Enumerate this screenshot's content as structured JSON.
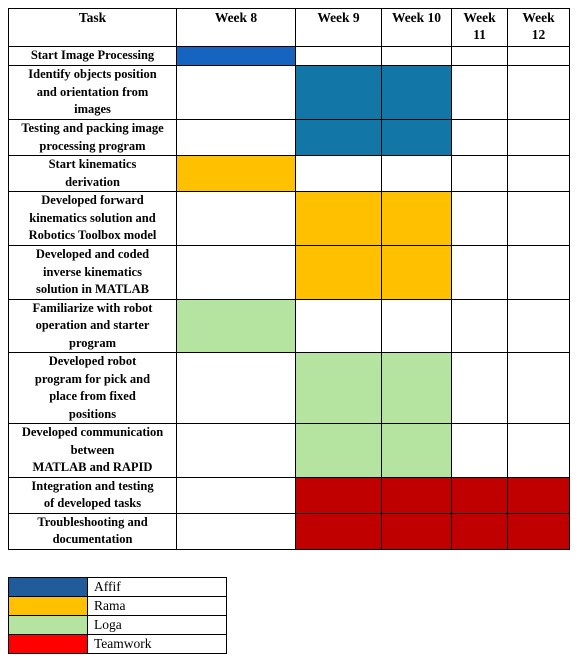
{
  "headers": [
    "Task",
    "Week 8",
    "Week 9",
    "Week 10",
    "Week 11",
    "Week 12"
  ],
  "week_header_lines": [
    [
      "Week 8"
    ],
    [
      "Week 9"
    ],
    [
      "Week 10"
    ],
    [
      "Week",
      "11"
    ],
    [
      "Week",
      "12"
    ]
  ],
  "colors": {
    "Affif": "#1565C0",
    "Rama": "#FFC000",
    "Loga": "#B5E3A0",
    "Teamwork": "#C00000",
    "Teamwork_legend": "#FF0000",
    "Affif_imageproc": "#1277A6"
  },
  "tasks": [
    {
      "lines": [
        "Start Image Processing"
      ],
      "cells": [
        "Affif",
        null,
        null,
        null,
        null
      ],
      "merge_w8": false,
      "fill_override": {
        "0": "Affif"
      }
    },
    {
      "lines": [
        "Identify objects position",
        "and orientation from",
        "images"
      ],
      "cells": [
        null,
        "Affif_imageproc",
        "Affif_imageproc",
        null,
        null
      ]
    },
    {
      "lines": [
        "Testing and packing image",
        "processing program"
      ],
      "cells": [
        null,
        "Affif_imageproc",
        "Affif_imageproc",
        null,
        null
      ]
    },
    {
      "lines": [
        "Start kinematics",
        "derivation"
      ],
      "cells": [
        "Rama",
        null,
        null,
        null,
        null
      ]
    },
    {
      "lines": [
        "Developed forward",
        "kinematics solution and",
        "Robotics Toolbox model"
      ],
      "cells": [
        null,
        "Rama",
        "Rama",
        null,
        null
      ]
    },
    {
      "lines": [
        "Developed and coded",
        "inverse kinematics",
        "solution in MATLAB"
      ],
      "cells": [
        null,
        "Rama",
        "Rama",
        null,
        null
      ]
    },
    {
      "lines": [
        "Familiarize with robot",
        "operation and starter",
        "program"
      ],
      "cells": [
        "Loga",
        null,
        null,
        null,
        null
      ]
    },
    {
      "lines": [
        "Developed robot",
        "program for pick and",
        "place from fixed",
        "positions"
      ],
      "cells": [
        null,
        "Loga",
        "Loga",
        null,
        null
      ]
    },
    {
      "lines": [
        "Developed communication",
        "between",
        "MATLAB and RAPID"
      ],
      "cells": [
        null,
        "Loga",
        "Loga",
        null,
        null
      ]
    },
    {
      "lines": [
        "Integration and testing",
        "of developed tasks"
      ],
      "cells": [
        null,
        "Teamwork",
        "Teamwork",
        "Teamwork",
        "Teamwork"
      ]
    },
    {
      "lines": [
        "Troubleshooting and",
        "documentation"
      ],
      "cells": [
        null,
        "Teamwork",
        "Teamwork",
        "Teamwork",
        "Teamwork"
      ]
    }
  ],
  "legend": [
    {
      "label": "Affif",
      "color": "#1F5C99"
    },
    {
      "label": "Rama",
      "color": "#FFC000"
    },
    {
      "label": "Loga",
      "color": "#B5E3A0"
    },
    {
      "label": "Teamwork",
      "color": "#FF0000"
    }
  ]
}
